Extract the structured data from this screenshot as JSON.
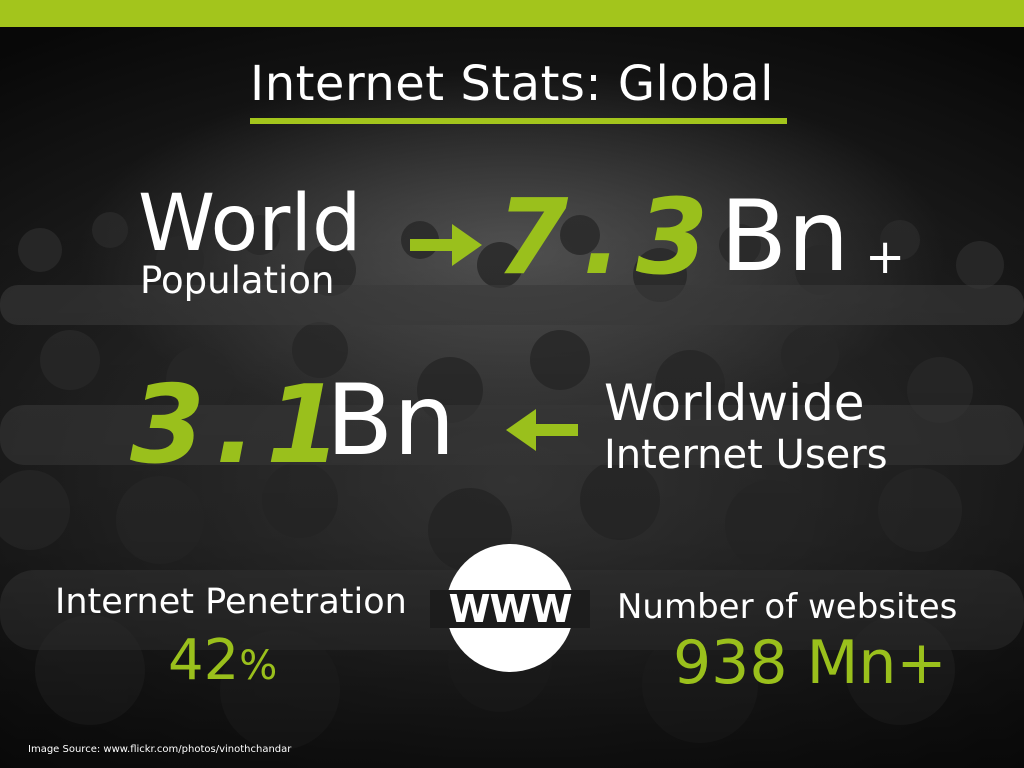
{
  "slide": {
    "title": "Internet Stats: Global",
    "world_population": {
      "label_line1": "World",
      "label_line2": "Population",
      "value": "7.3",
      "unit": "Bn",
      "suffix": "+"
    },
    "internet_users": {
      "value": "3.1",
      "unit": "Bn",
      "label_line1": "Worldwide",
      "label_line2": "Internet Users"
    },
    "internet_penetration": {
      "label": "Internet Penetration",
      "value": "42",
      "unit": "%"
    },
    "websites": {
      "label": "Number of websites",
      "value": "938 Mn+"
    },
    "www_badge": {
      "text": "WWW",
      "icon": "www-globe-icon"
    },
    "image_source": "Image Source: www.flickr.com/photos/vinothchandar",
    "colors": {
      "accent": "#a3c51c",
      "text": "#ffffff",
      "background": "#1a1a1a"
    }
  }
}
